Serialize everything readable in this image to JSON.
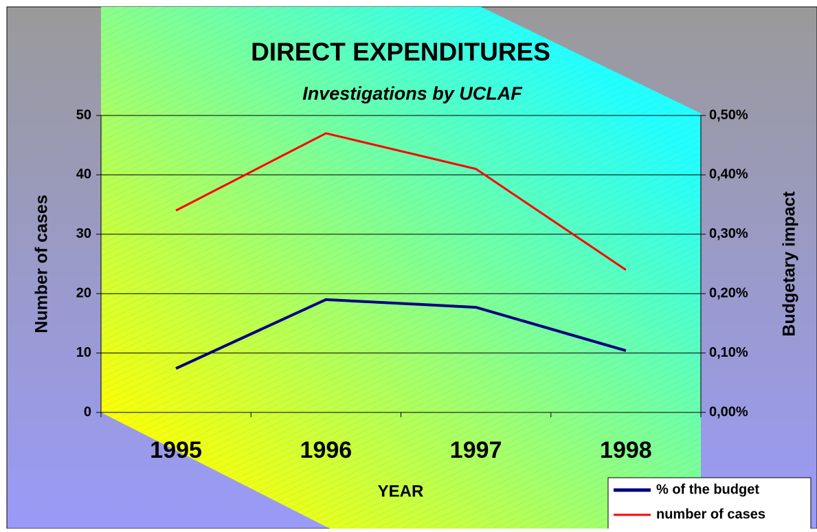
{
  "chart_data": {
    "type": "line",
    "title": "DIRECT EXPENDITURES",
    "subtitle": "Investigations by UCLAF",
    "x_label": "YEAR",
    "y_label": "Number of cases",
    "y2_label": "Budgetary impact",
    "categories": [
      "1995",
      "1996",
      "1997",
      "1998"
    ],
    "series": [
      {
        "name": "% of the budget",
        "color": "#000080",
        "axis": "y2",
        "values": [
          0.074,
          0.19,
          0.177,
          0.104
        ]
      },
      {
        "name": "number of cases",
        "color": "#ff0000",
        "values": [
          34,
          47,
          41,
          24
        ]
      }
    ],
    "ylim": [
      0,
      50
    ],
    "yticks": [
      0,
      10,
      20,
      30,
      40,
      50
    ],
    "y2lim": [
      0,
      0.5
    ],
    "y2ticks": [
      {
        "value": 0,
        "label": "0,00%"
      },
      {
        "value": 0.1,
        "label": "0,10%"
      },
      {
        "value": 0.2,
        "label": "0,20%"
      },
      {
        "value": 0.3,
        "label": "0,30%"
      },
      {
        "value": 0.4,
        "label": "0,40%"
      },
      {
        "value": 0.5,
        "label": "0,50%"
      }
    ],
    "grid": true,
    "legend": "bottom-right"
  }
}
